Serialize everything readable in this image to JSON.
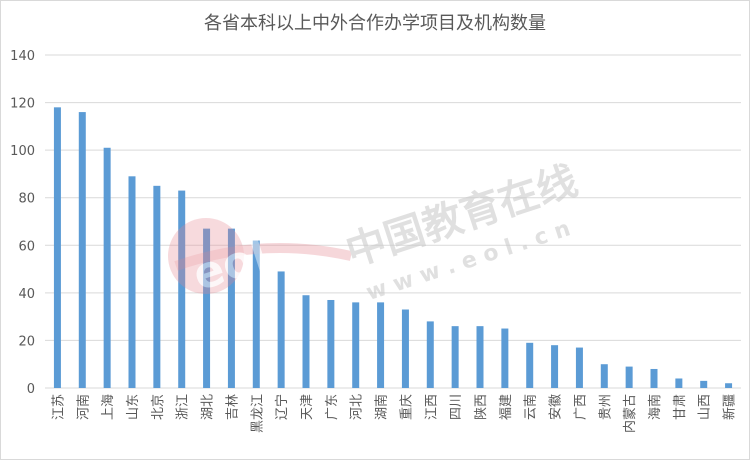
{
  "chart_data": {
    "type": "bar",
    "title": "各省本科以上中外合作办学项目及机构数量",
    "xlabel": "",
    "ylabel": "",
    "ylim": [
      0,
      140
    ],
    "yticks": [
      0,
      20,
      40,
      60,
      80,
      100,
      120,
      140
    ],
    "grid": true,
    "legend": "none",
    "bar_color": "#5b9bd5",
    "categories": [
      "江苏",
      "河南",
      "上海",
      "山东",
      "北京",
      "浙江",
      "湖北",
      "吉林",
      "黑龙江",
      "辽宁",
      "天津",
      "广东",
      "河北",
      "湖南",
      "重庆",
      "江西",
      "四川",
      "陕西",
      "福建",
      "云南",
      "安徽",
      "广西",
      "贵州",
      "内蒙古",
      "海南",
      "甘肃",
      "山西",
      "新疆"
    ],
    "values": [
      118,
      116,
      101,
      89,
      85,
      83,
      67,
      67,
      62,
      49,
      39,
      37,
      36,
      36,
      33,
      28,
      26,
      26,
      25,
      19,
      18,
      17,
      10,
      9,
      8,
      4,
      3,
      2
    ]
  },
  "watermark": {
    "logo_text": "eol",
    "cn_text": "中国教育在线",
    "url_text": "w w w . e o l . c n",
    "logo_color": "#e5858f",
    "text_color": "#c8c8c8"
  }
}
